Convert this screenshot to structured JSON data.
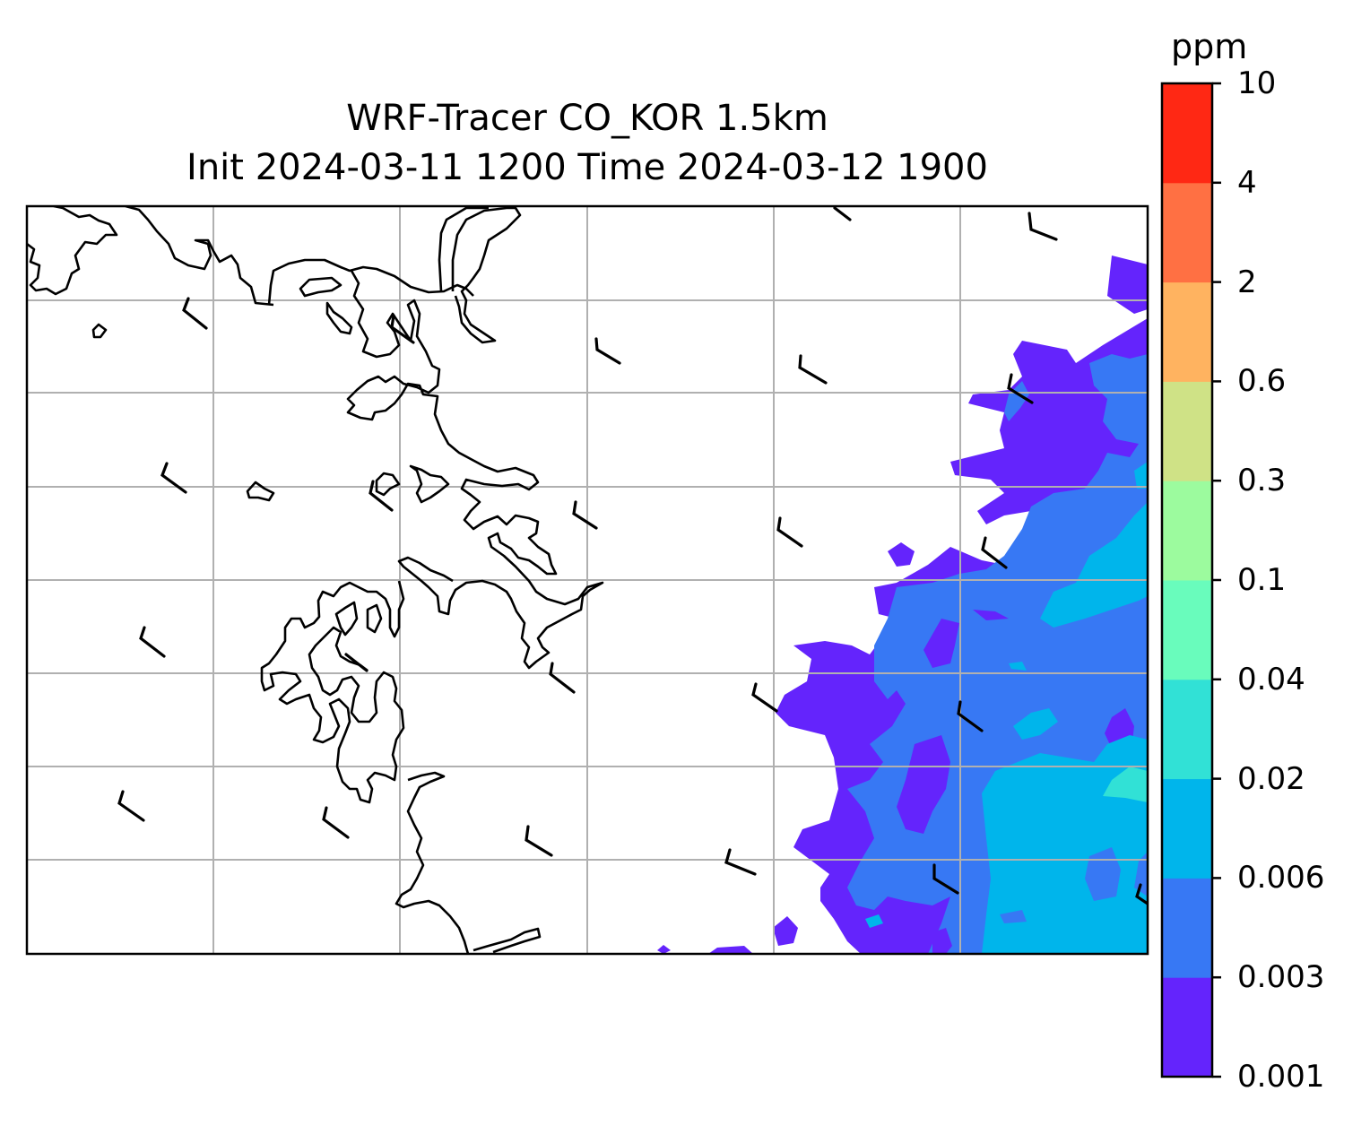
{
  "title": {
    "line1": "WRF-Tracer CO_KOR 1.5km",
    "line2": "Init 2024-03-11 1200 Time 2024-03-12 1900"
  },
  "colorbar": {
    "unit": "ppm",
    "levels": [
      "0.001",
      "0.003",
      "0.006",
      "0.02",
      "0.04",
      "0.1",
      "0.3",
      "0.6",
      "2",
      "4",
      "10"
    ],
    "colors": [
      "#6424fc",
      "#3778f4",
      "#00b5eb",
      "#31e1d6",
      "#69fcbc",
      "#9cfb9e",
      "#cfe286",
      "#ffb360",
      "#ff7043",
      "#ff2814"
    ]
  },
  "map": {
    "gridlines": true,
    "coastline_color": "#000000",
    "grid_color": "#b0b0b0",
    "field": "CO tracer concentration",
    "wind_barbs": "black"
  }
}
